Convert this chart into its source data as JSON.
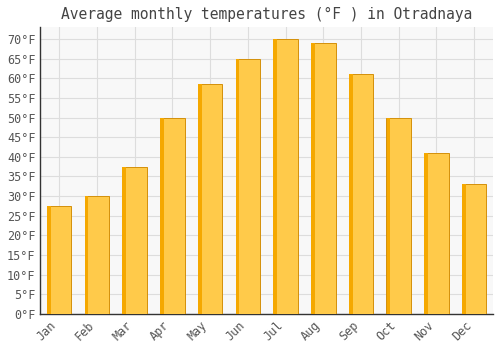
{
  "title": "Average monthly temperatures (°F ) in Otradnaya",
  "months": [
    "Jan",
    "Feb",
    "Mar",
    "Apr",
    "May",
    "Jun",
    "Jul",
    "Aug",
    "Sep",
    "Oct",
    "Nov",
    "Dec"
  ],
  "values": [
    27.5,
    30.0,
    37.5,
    50.0,
    58.5,
    65.0,
    70.0,
    69.0,
    61.0,
    50.0,
    41.0,
    33.0
  ],
  "bar_color_light": "#FFCA4A",
  "bar_color_dark": "#F5A800",
  "bar_edge_color": "#D4900A",
  "background_color": "#FFFFFF",
  "plot_bg_color": "#F8F8F8",
  "grid_color": "#DDDDDD",
  "text_color": "#555555",
  "title_color": "#444444",
  "axis_color": "#333333",
  "ylim": [
    0,
    73
  ],
  "yticks": [
    0,
    5,
    10,
    15,
    20,
    25,
    30,
    35,
    40,
    45,
    50,
    55,
    60,
    65,
    70
  ],
  "ylabel_suffix": "°F",
  "title_fontsize": 10.5,
  "tick_fontsize": 8.5
}
